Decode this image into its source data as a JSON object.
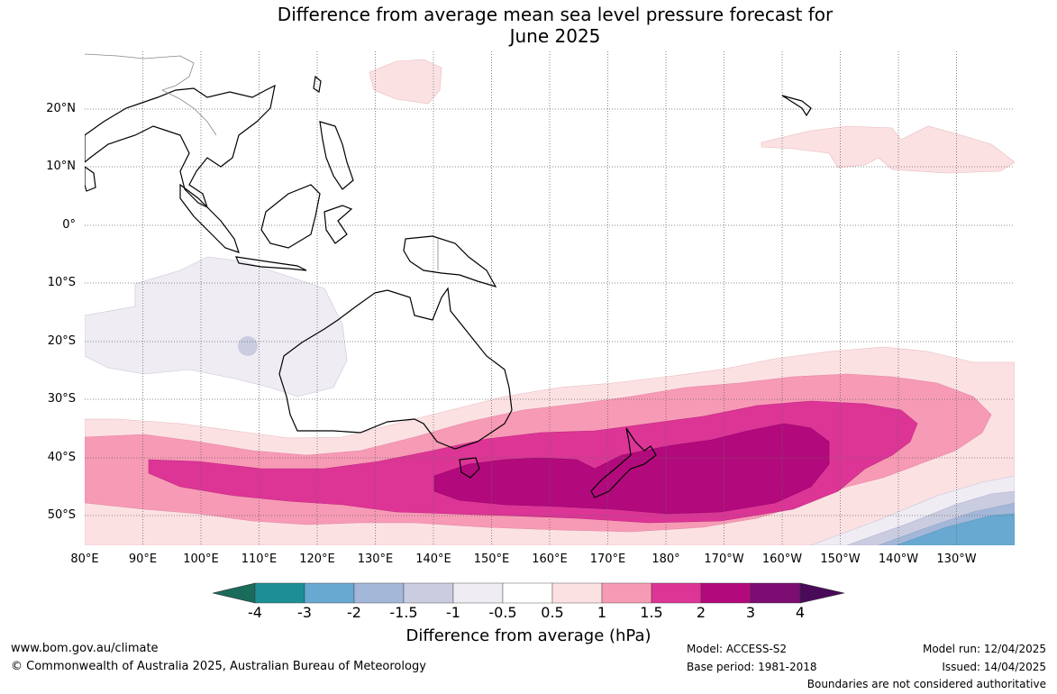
{
  "title": {
    "line1": "Difference from average mean sea level pressure forecast for",
    "line2": "June 2025"
  },
  "map": {
    "lat_labels": [
      "20°N",
      "10°N",
      "0°",
      "10°S",
      "20°S",
      "30°S",
      "40°S",
      "50°S"
    ],
    "lon_labels": [
      "80°E",
      "90°E",
      "100°E",
      "110°E",
      "120°E",
      "130°E",
      "140°E",
      "150°E",
      "160°E",
      "170°E",
      "180°",
      "170°W",
      "160°W",
      "150°W",
      "140°W",
      "130°W"
    ],
    "coastline_color": "#000000",
    "gridline_style": "dotted"
  },
  "colorbar": {
    "ticks": [
      "-4",
      "-3",
      "-2",
      "-1.5",
      "-1",
      "-0.5",
      "0.5",
      "1",
      "1.5",
      "2",
      "3",
      "4"
    ],
    "colors": [
      "#1a6b5a",
      "#1b8f94",
      "#68a9d2",
      "#a3b7d8",
      "#cacce0",
      "#efecf3",
      "#ffffff",
      "#fce1e3",
      "#f79ab5",
      "#dc3596",
      "#b20a7c",
      "#7b0d73",
      "#4a0a5a"
    ],
    "label": "Difference from average (hPa)"
  },
  "footer": {
    "url": "www.bom.gov.au/climate",
    "copyright": "© Commonwealth of Australia 2025, Australian Bureau of Meteorology",
    "model": "Model: ACCESS-S2",
    "base_period": "Base period: 1981-2018",
    "model_run": "Model run: 12/04/2025",
    "issued": "Issued: 14/04/2025",
    "disclaimer": "Boundaries are not considered authoritative"
  }
}
